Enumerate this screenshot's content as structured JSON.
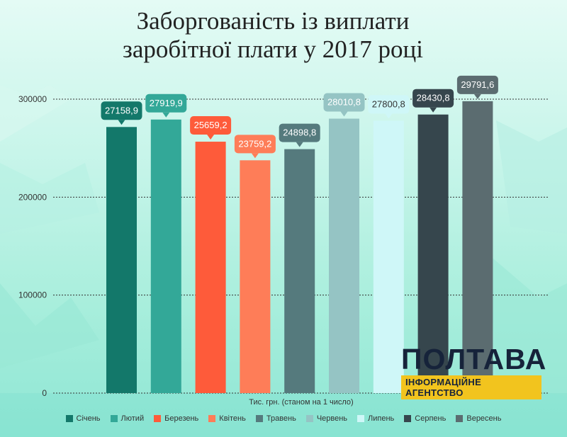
{
  "title_line1": "Заборгованість із виплати",
  "title_line2": "заробітної плати у 2017 році",
  "chart_data": {
    "type": "bar",
    "categories": [
      "Січень",
      "Лютий",
      "Березень",
      "Квітень",
      "Травень",
      "Червень",
      "Липень",
      "Серпень",
      "Вересень"
    ],
    "values": [
      271589,
      279199,
      256592,
      237592,
      248988,
      280108,
      278008,
      284308,
      297916
    ],
    "data_labels": [
      "27158,9",
      "27919,9",
      "25659,2",
      "23759,2",
      "24898,8",
      "28010,8",
      "27800,8",
      "28430,8",
      "29791,6"
    ],
    "colors": [
      "#13786a",
      "#33a898",
      "#fe5b3a",
      "#fe7d58",
      "#557a7d",
      "#95c4c4",
      "#cff7f8",
      "#36464d",
      "#5b6c70"
    ],
    "yticks": [
      "0",
      "100000",
      "200000",
      "300000"
    ],
    "ylim": [
      0,
      300000
    ],
    "xlabel": "Тис. грн. (станом на 1 число)",
    "grid": true,
    "legend_position": "bottom"
  },
  "logo": {
    "name": "ПОЛТАВА",
    "tagline": "ІНФОРМАЦІЙНЕ АГЕНТСТВО"
  }
}
